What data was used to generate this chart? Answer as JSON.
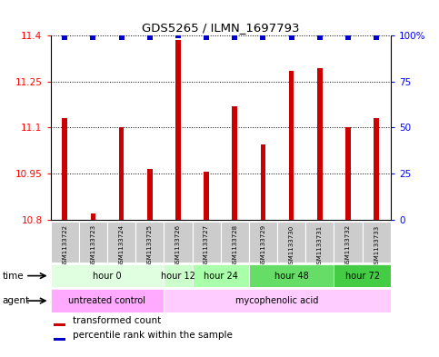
{
  "title": "GDS5265 / ILMN_1697793",
  "samples": [
    "GSM1133722",
    "GSM1133723",
    "GSM1133724",
    "GSM1133725",
    "GSM1133726",
    "GSM1133727",
    "GSM1133728",
    "GSM1133729",
    "GSM1133730",
    "GSM1133731",
    "GSM1133732",
    "GSM1133733"
  ],
  "bar_values": [
    11.13,
    10.82,
    11.1,
    10.965,
    11.385,
    10.955,
    11.17,
    11.045,
    11.285,
    11.295,
    11.1,
    11.13
  ],
  "percentile_values": [
    99,
    99,
    99,
    99,
    100,
    99,
    99,
    99,
    99,
    99,
    99,
    99
  ],
  "bar_color": "#cc0000",
  "percentile_color": "#0000cc",
  "ymin": 10.8,
  "ymax": 11.4,
  "yticks": [
    10.8,
    10.95,
    11.1,
    11.25,
    11.4
  ],
  "ytick_labels": [
    "10.8",
    "10.95",
    "11.1",
    "11.25",
    "11.4"
  ],
  "y2min": 0,
  "y2max": 100,
  "y2ticks": [
    0,
    25,
    50,
    75,
    100
  ],
  "y2tick_labels": [
    "0",
    "25",
    "50",
    "75",
    "100%"
  ],
  "time_groups": [
    {
      "label": "hour 0",
      "start": 0,
      "end": 3,
      "color": "#e0ffe0"
    },
    {
      "label": "hour 12",
      "start": 4,
      "end": 4,
      "color": "#ccffcc"
    },
    {
      "label": "hour 24",
      "start": 5,
      "end": 6,
      "color": "#aaffaa"
    },
    {
      "label": "hour 48",
      "start": 7,
      "end": 9,
      "color": "#66dd66"
    },
    {
      "label": "hour 72",
      "start": 10,
      "end": 11,
      "color": "#44cc44"
    }
  ],
  "agent_groups": [
    {
      "label": "untreated control",
      "start": 0,
      "end": 3,
      "color": "#ffaaff"
    },
    {
      "label": "mycophenolic acid",
      "start": 4,
      "end": 11,
      "color": "#ffccff"
    }
  ],
  "time_label": "time",
  "agent_label": "agent",
  "legend_bar_label": "transformed count",
  "legend_pct_label": "percentile rank within the sample",
  "sample_box_color": "#cccccc",
  "bar_base": 10.8,
  "bar_width": 0.18
}
